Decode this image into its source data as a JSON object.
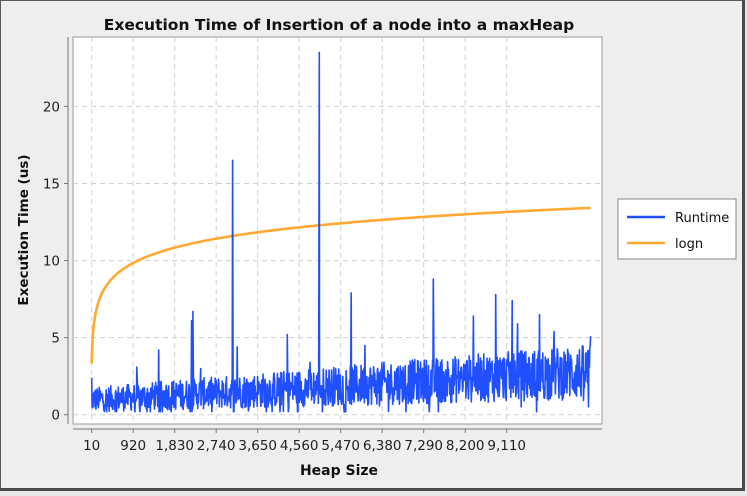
{
  "chart_data": {
    "type": "line",
    "title": "Execution Time of Insertion of a node into a maxHeap",
    "xlabel": "Heap Size",
    "ylabel": "Execution Time (us)",
    "xlim": [
      -400,
      11200
    ],
    "ylim": [
      -0.6,
      24.5
    ],
    "x_ticks": [
      {
        "value": 10,
        "label": "10"
      },
      {
        "value": 920,
        "label": "920"
      },
      {
        "value": 1830,
        "label": "1,830"
      },
      {
        "value": 2740,
        "label": "2,740"
      },
      {
        "value": 3650,
        "label": "3,650"
      },
      {
        "value": 4560,
        "label": "4,560"
      },
      {
        "value": 5470,
        "label": "5,470"
      },
      {
        "value": 6380,
        "label": "6,380"
      },
      {
        "value": 7290,
        "label": "7,290"
      },
      {
        "value": 8200,
        "label": "8,200"
      },
      {
        "value": 9110,
        "label": "9,110"
      }
    ],
    "y_ticks": [
      0,
      5,
      10,
      15,
      20
    ],
    "grid": true,
    "legend_position": "right",
    "series": [
      {
        "name": "Runtime",
        "color": "#1f4fff",
        "x_start": 10,
        "x_end": 10950,
        "baseline_start": 0.9,
        "baseline_end": 2.6,
        "noise_start": 1.6,
        "noise_end": 3.6,
        "spikes": [
          {
            "x": 1000,
            "y": 3.1
          },
          {
            "x": 1480,
            "y": 4.2
          },
          {
            "x": 2230,
            "y": 6.7
          },
          {
            "x": 2200,
            "y": 6.1
          },
          {
            "x": 2400,
            "y": 3.0
          },
          {
            "x": 3100,
            "y": 16.5
          },
          {
            "x": 3200,
            "y": 4.4
          },
          {
            "x": 4300,
            "y": 5.2
          },
          {
            "x": 4800,
            "y": 3.4
          },
          {
            "x": 5000,
            "y": 23.5
          },
          {
            "x": 5700,
            "y": 7.9
          },
          {
            "x": 6000,
            "y": 4.5
          },
          {
            "x": 7500,
            "y": 8.8
          },
          {
            "x": 8380,
            "y": 6.4
          },
          {
            "x": 8870,
            "y": 7.8
          },
          {
            "x": 9230,
            "y": 7.4
          },
          {
            "x": 9350,
            "y": 5.9
          },
          {
            "x": 9830,
            "y": 6.5
          },
          {
            "x": 10150,
            "y": 5.4
          },
          {
            "x": 10950,
            "y": 5.1
          }
        ]
      },
      {
        "name": "logn",
        "color": "#ffa933",
        "function": "log2(x)",
        "x_start": 10,
        "x_end": 10950
      }
    ]
  }
}
